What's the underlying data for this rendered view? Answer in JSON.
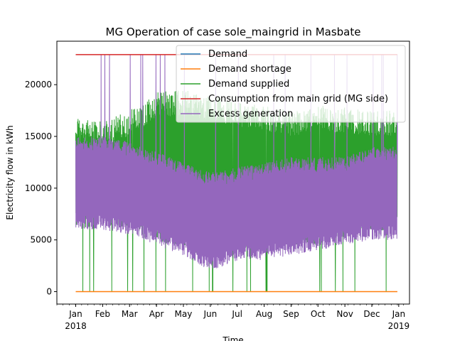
{
  "chart_data": {
    "type": "line",
    "title": "MG Operation of case sole_maingrid in Masbate",
    "xlabel": "Time",
    "ylabel": "Electricity flow in kWh",
    "xlim": [
      -0.7,
      12.4
    ],
    "ylim": [
      -1200,
      24200
    ],
    "x_tick_months": [
      "Jan",
      "Feb",
      "Mar",
      "Apr",
      "May",
      "Jun",
      "Jul",
      "Aug",
      "Sep",
      "Oct",
      "Nov",
      "Dec",
      "Jan"
    ],
    "x_tick_years": [
      "2018",
      "2019"
    ],
    "y_ticks": [
      0,
      5000,
      10000,
      15000,
      20000
    ],
    "y_tick_labels": [
      "0",
      "5000",
      "10000",
      "15000",
      "20000"
    ],
    "legend_position": "top-right",
    "series": [
      {
        "name": "Demand",
        "color": "#1f77b4",
        "summary": "hourly demand, hidden beneath demand supplied and excess generation"
      },
      {
        "name": "Demand shortage",
        "color": "#ff7f0e",
        "constant": 0
      },
      {
        "name": "Demand supplied",
        "color": "#2ca02c",
        "monthly_max": [
          17000,
          16500,
          17500,
          19300,
          19500,
          19000,
          18500,
          18000,
          17500,
          18000,
          17800,
          17500
        ],
        "monthly_min": [
          6000,
          6500,
          6000,
          5000,
          4000,
          3500,
          4000,
          4000,
          4500,
          4500,
          5000,
          5500
        ],
        "dropouts_to_zero": true
      },
      {
        "name": "Consumption from main grid (MG side)",
        "color": "#d62728",
        "constant": 22900
      },
      {
        "name": "Excess generation",
        "color": "#9467bd",
        "monthly_max": [
          15000,
          15000,
          14500,
          13500,
          12500,
          11500,
          12000,
          12500,
          13000,
          13000,
          13000,
          14000
        ],
        "monthly_min": [
          6000,
          6000,
          5500,
          4500,
          3500,
          2000,
          3000,
          3000,
          3500,
          4000,
          4500,
          5000
        ],
        "spikes_to": 22900
      }
    ]
  }
}
